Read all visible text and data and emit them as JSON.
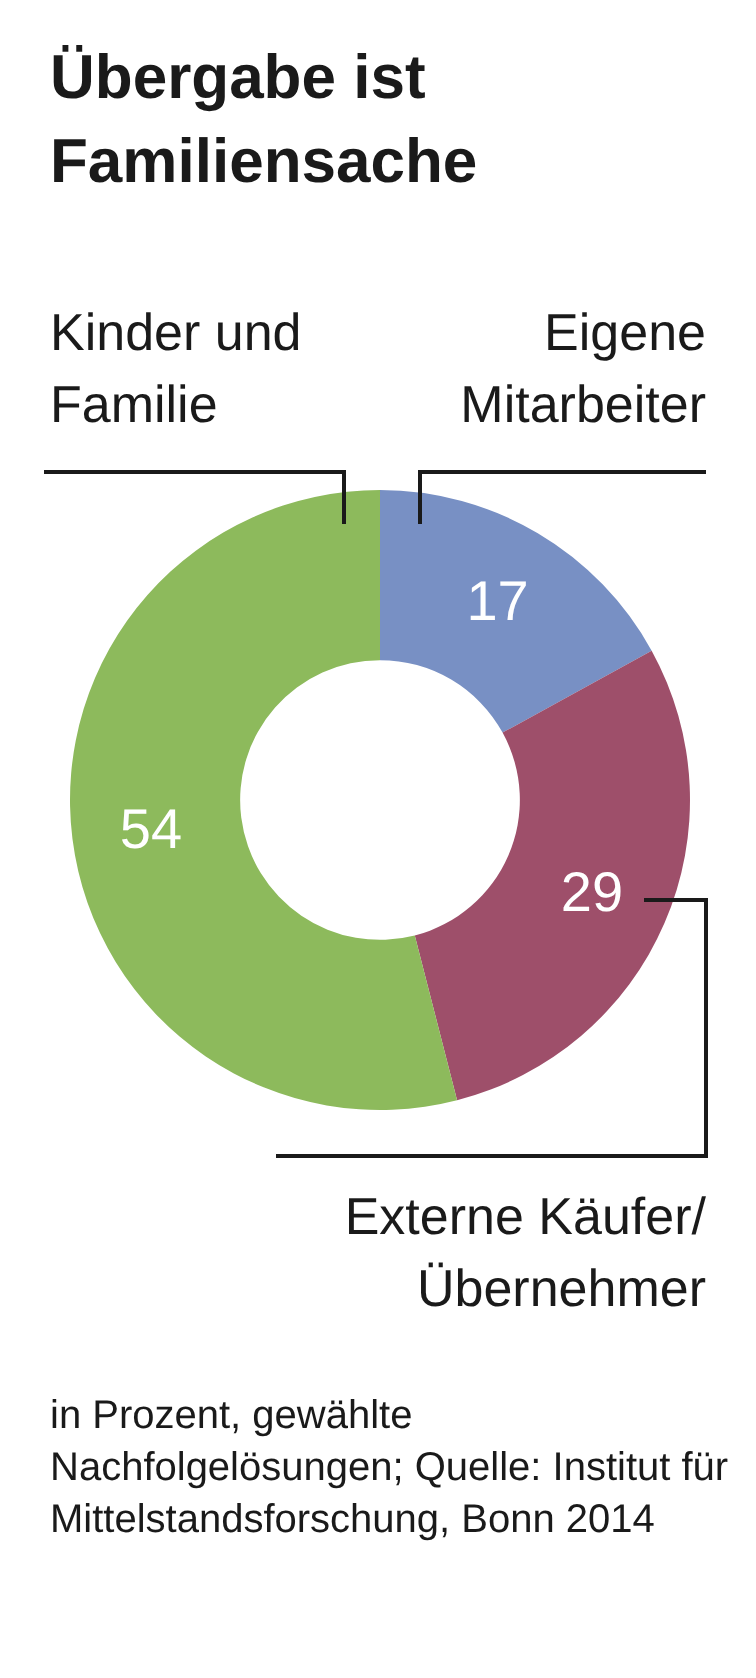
{
  "chart_data": {
    "type": "donut",
    "title": "Übergabe ist Familiensache",
    "categories": [
      "Eigene Mitarbeiter",
      "Externe Käufer/ Übernehmer",
      "Kinder und Familie"
    ],
    "values": [
      17,
      29,
      54
    ],
    "colors": [
      "#7890c4",
      "#9e4f6a",
      "#8dba5c"
    ],
    "data_labels": true,
    "annotations": [
      "in Prozent, gewählte Nachfolgelösungen; Quelle: Institut für Mittelstandsforschung, Bonn 2014"
    ]
  }
}
